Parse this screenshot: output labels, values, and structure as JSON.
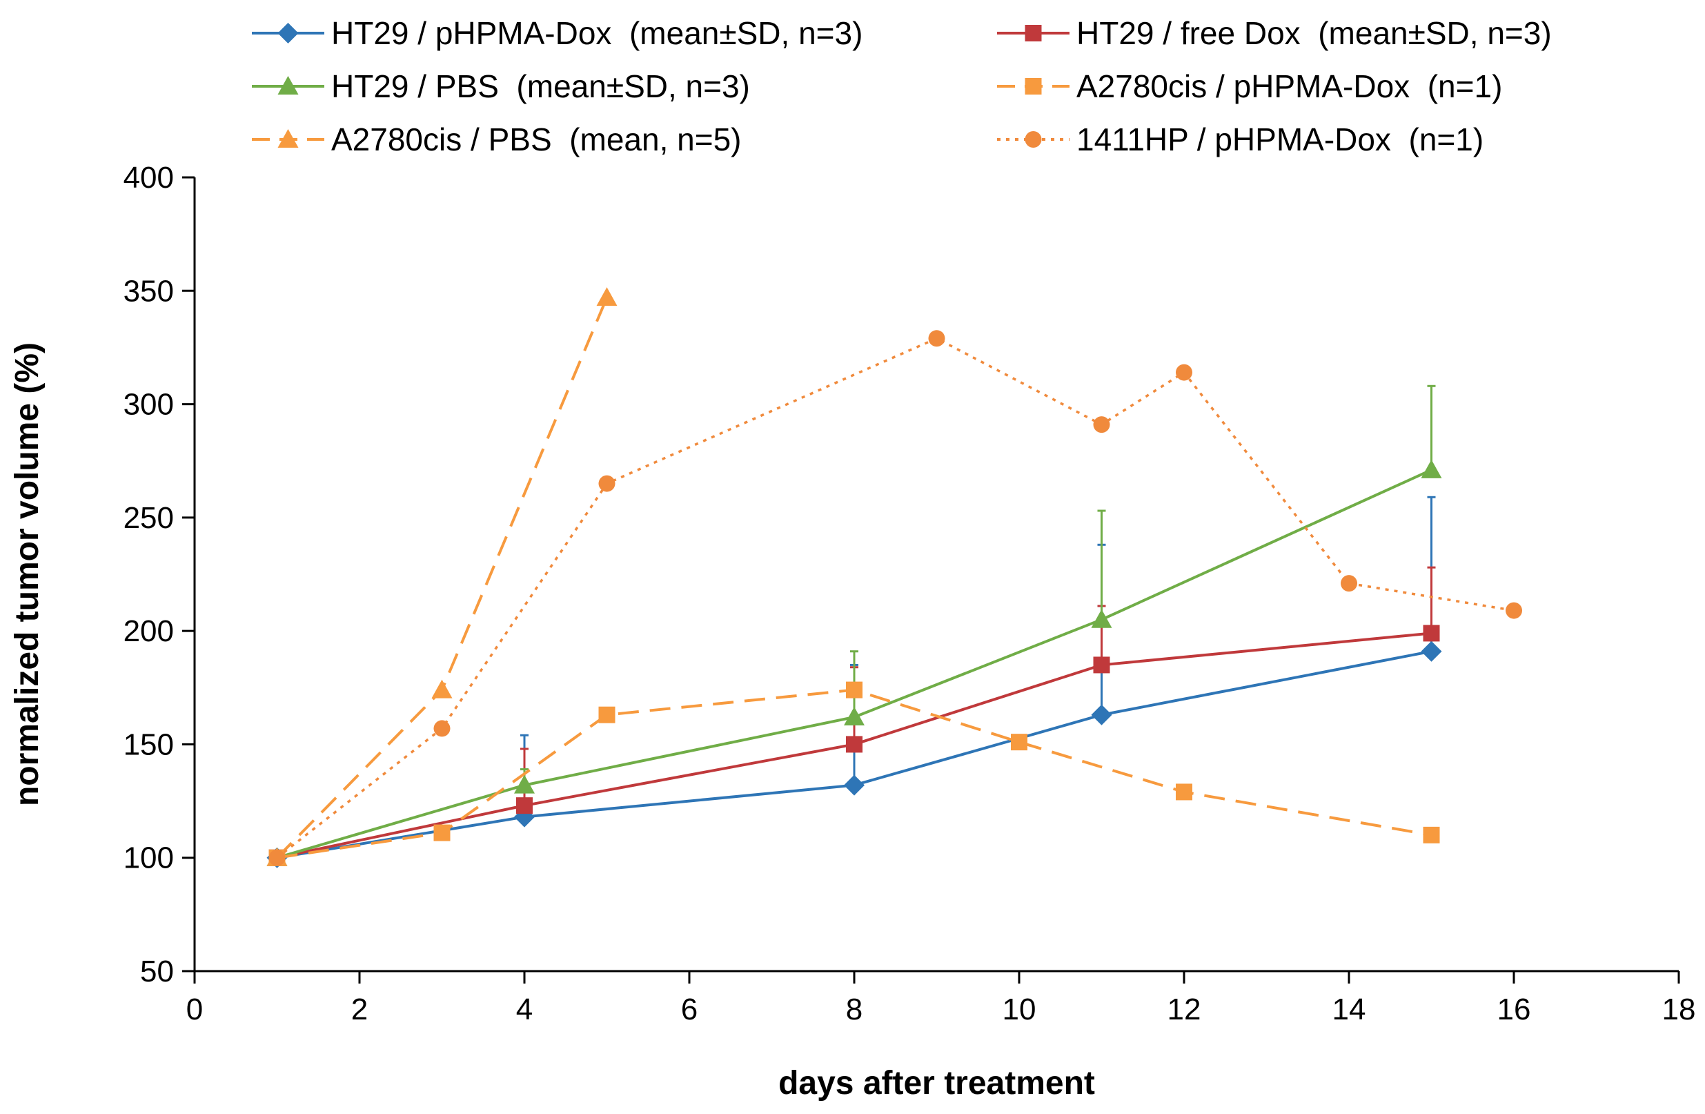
{
  "chart_data": {
    "type": "line",
    "xlabel": "days after treatment",
    "ylabel": "normalized tumor volume (%)",
    "xlim": [
      0,
      18
    ],
    "ylim": [
      50,
      400
    ],
    "xticks": [
      "0",
      "2",
      "4",
      "6",
      "8",
      "10",
      "12",
      "14",
      "16",
      "18"
    ],
    "yticks": [
      "50",
      "100",
      "150",
      "200",
      "250",
      "300",
      "350",
      "400"
    ],
    "grid": false,
    "legend_position": "top",
    "series": [
      {
        "name": "HT29 / pHPMA-Dox  (mean±SD, n=3)",
        "color": "#2E75B6",
        "line": "solid",
        "marker": "diamond",
        "x": [
          1,
          4,
          8,
          11,
          15
        ],
        "y": [
          100,
          118,
          132,
          163,
          191
        ],
        "err": [
          0,
          36,
          53,
          75,
          68
        ]
      },
      {
        "name": "HT29 / free Dox  (mean±SD, n=3)",
        "color": "#C0393B",
        "line": "solid",
        "marker": "square",
        "x": [
          1,
          4,
          8,
          11,
          15
        ],
        "y": [
          100,
          123,
          150,
          185,
          199
        ],
        "err": [
          0,
          25,
          34,
          26,
          29
        ]
      },
      {
        "name": "HT29 / PBS  (mean±SD, n=3)",
        "color": "#70AD47",
        "line": "solid",
        "marker": "triangle",
        "x": [
          1,
          4,
          8,
          11,
          15
        ],
        "y": [
          100,
          132,
          162,
          205,
          271
        ],
        "err": [
          0,
          7,
          29,
          48,
          37
        ]
      },
      {
        "name": "A2780cis / pHPMA-Dox  (n=1)",
        "color": "#F79A3E",
        "line": "dashed",
        "marker": "square",
        "x": [
          1,
          3,
          5,
          8,
          10,
          12,
          15
        ],
        "y": [
          100,
          111,
          163,
          174,
          151,
          129,
          110
        ]
      },
      {
        "name": "A2780cis / PBS  (mean, n=5)",
        "color": "#F79A3E",
        "line": "dashed",
        "marker": "triangle",
        "x": [
          1,
          3,
          5
        ],
        "y": [
          100,
          174,
          347
        ]
      },
      {
        "name": "1411HP / pHPMA-Dox  (n=1)",
        "color": "#F08A3C",
        "line": "dotted",
        "marker": "circle",
        "x": [
          1,
          3,
          5,
          9,
          11,
          12,
          14,
          16
        ],
        "y": [
          100,
          157,
          265,
          329,
          291,
          314,
          221,
          209
        ]
      }
    ],
    "legend_order": [
      0,
      1,
      2,
      3,
      4,
      5
    ]
  }
}
